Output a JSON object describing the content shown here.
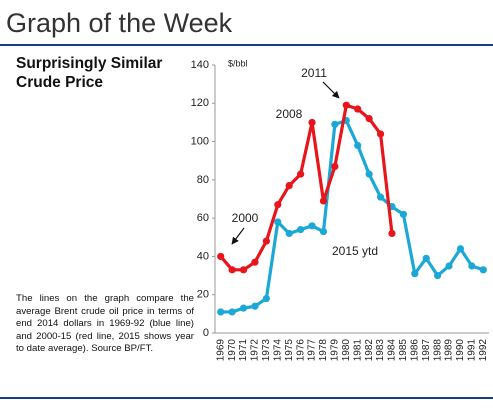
{
  "header": {
    "title": "Graph of the Week"
  },
  "chart_data": {
    "type": "line",
    "title": "Surprisingly Similar Crude Price",
    "note": "The lines on the graph compare the average Brent crude oil price in terms of end 2014 dollars in 1969-92 (blue line) and 2000-15 (red line, 2015 shows year to date average). Source BP/FT.",
    "y_label": "$/bbl",
    "categories": [
      "1969",
      "1970",
      "1971",
      "1972",
      "1973",
      "1974",
      "1975",
      "1976",
      "1977",
      "1978",
      "1979",
      "1980",
      "1981",
      "1982",
      "1983",
      "1984",
      "1985",
      "1986",
      "1987",
      "1988",
      "1989",
      "1990",
      "1991",
      "1992"
    ],
    "series": [
      {
        "name": "1969-92",
        "color": "#1ba8d6",
        "values": [
          11,
          11,
          13,
          14,
          18,
          58,
          52,
          54,
          56,
          53,
          109,
          111,
          98,
          83,
          71,
          66,
          62,
          31,
          39,
          30,
          35,
          44,
          35,
          33
        ]
      },
      {
        "name": "2000-15",
        "color": "#e8151b",
        "values": [
          40,
          33,
          33,
          37,
          48,
          67,
          77,
          83,
          110,
          69,
          87,
          119,
          117,
          112,
          104,
          52,
          null,
          null,
          null,
          null,
          null,
          null,
          null,
          null
        ]
      }
    ],
    "annotations": [
      "2000",
      "2008",
      "2011",
      "2015 ytd"
    ],
    "ylim": [
      0,
      140
    ],
    "yticks": [
      0,
      20,
      40,
      60,
      80,
      100,
      120,
      140
    ]
  }
}
